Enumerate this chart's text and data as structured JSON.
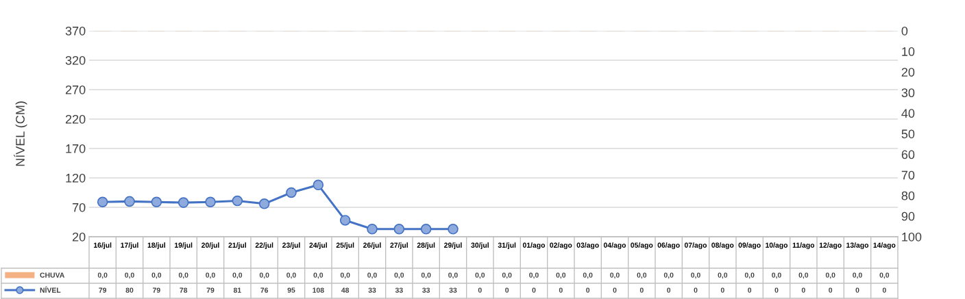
{
  "chart_data": {
    "type": "line",
    "ylabel": "NÍVEL (CM)",
    "categories": [
      "16/jul",
      "17/jul",
      "18/jul",
      "19/jul",
      "20/jul",
      "21/jul",
      "22/jul",
      "23/jul",
      "24/jul",
      "25/jul",
      "26/jul",
      "27/jul",
      "28/jul",
      "29/jul",
      "30/jul",
      "31/jul",
      "01/ago",
      "02/ago",
      "03/ago",
      "04/ago",
      "05/ago",
      "06/ago",
      "07/ago",
      "08/ago",
      "09/ago",
      "10/ago",
      "11/ago",
      "12/ago",
      "13/ago",
      "14/ago"
    ],
    "series": [
      {
        "name": "CHUVA",
        "type": "bar",
        "axis": "y2",
        "color": "#f4b183",
        "values": [
          0,
          0,
          0,
          0,
          0,
          0,
          0,
          0,
          0,
          0,
          0,
          0,
          0,
          0,
          0,
          0,
          0,
          0,
          0,
          0,
          0,
          0,
          0,
          0,
          0,
          0,
          0,
          0,
          0,
          0
        ],
        "value_labels": [
          "0,0",
          "0,0",
          "0,0",
          "0,0",
          "0,0",
          "0,0",
          "0,0",
          "0,0",
          "0,0",
          "0,0",
          "0,0",
          "0,0",
          "0,0",
          "0,0",
          "0,0",
          "0,0",
          "0,0",
          "0,0",
          "0,0",
          "0,0",
          "0,0",
          "0,0",
          "0,0",
          "0,0",
          "0,0",
          "0,0",
          "0,0",
          "0,0",
          "0,0",
          "0,0"
        ]
      },
      {
        "name": "NÍVEL",
        "color": "#4472c4",
        "values": [
          79,
          80,
          79,
          78,
          79,
          81,
          76,
          95,
          108,
          48,
          33,
          33,
          33,
          33,
          null,
          null,
          null,
          null,
          null,
          null,
          null,
          null,
          null,
          null,
          null,
          null,
          null,
          null,
          null,
          null
        ],
        "value_labels": [
          "79",
          "80",
          "79",
          "78",
          "79",
          "81",
          "76",
          "95",
          "108",
          "48",
          "33",
          "33",
          "33",
          "33",
          "0",
          "0",
          "0",
          "0",
          "0",
          "0",
          "0",
          "0",
          "0",
          "0",
          "0",
          "0",
          "0",
          "0",
          "0",
          "0"
        ]
      }
    ],
    "ylim": [
      20,
      370
    ],
    "yticks": [
      20,
      70,
      120,
      170,
      220,
      270,
      320,
      370
    ],
    "y2lim": [
      100,
      0
    ],
    "y2ticks": [
      0,
      10,
      20,
      30,
      40,
      50,
      60,
      70,
      80,
      90,
      100
    ],
    "grid": "y",
    "legend": "bottom",
    "marker": "circle",
    "line_style": "solid"
  }
}
